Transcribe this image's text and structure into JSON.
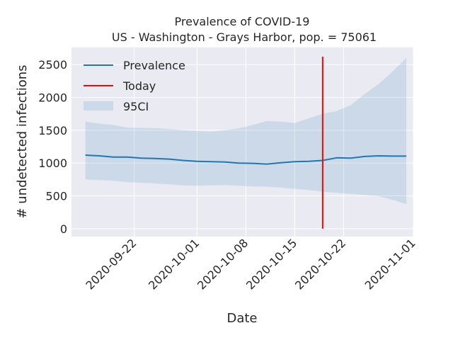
{
  "chart_data": {
    "type": "line",
    "title": "Prevalence of COVID-19",
    "subtitle": "US - Washington - Grays Harbor, pop. = 75061",
    "xlabel": "Date",
    "ylabel": "# undetected infections",
    "xlim": [
      "2020-09-13",
      "2020-11-01"
    ],
    "ylim": [
      -120,
      2760
    ],
    "x_ticks": [
      "2020-09-22",
      "2020-10-01",
      "2020-10-08",
      "2020-10-15",
      "2020-10-22",
      "2020-11-01"
    ],
    "y_ticks": [
      0,
      500,
      1000,
      1500,
      2000,
      2500
    ],
    "legend": {
      "placement": "top-left",
      "entries": [
        "Prevalence",
        "Today",
        "95CI"
      ]
    },
    "grid": true,
    "colors": {
      "prevalence": "#1f77b4",
      "today": "#ff0000",
      "ci": "#1f77b4",
      "background": "#eaeaf2",
      "grid": "#ffffff"
    },
    "today": "2020-10-19",
    "today_range": [
      0,
      2620
    ],
    "series": [
      {
        "name": "Prevalence",
        "x": [
          "2020-09-15",
          "2020-09-17",
          "2020-09-19",
          "2020-09-21",
          "2020-09-23",
          "2020-09-25",
          "2020-09-27",
          "2020-09-29",
          "2020-10-01",
          "2020-10-03",
          "2020-10-05",
          "2020-10-07",
          "2020-10-09",
          "2020-10-11",
          "2020-10-13",
          "2020-10-15",
          "2020-10-17",
          "2020-10-19",
          "2020-10-21",
          "2020-10-23",
          "2020-10-25",
          "2020-10-27",
          "2020-10-29",
          "2020-10-31"
        ],
        "values": [
          1120,
          1110,
          1090,
          1090,
          1075,
          1070,
          1060,
          1040,
          1025,
          1020,
          1015,
          1000,
          995,
          985,
          1005,
          1020,
          1025,
          1040,
          1080,
          1075,
          1100,
          1110,
          1105,
          1105
        ]
      }
    ],
    "ci": {
      "name": "95CI",
      "x": [
        "2020-09-15",
        "2020-09-17",
        "2020-09-19",
        "2020-09-21",
        "2020-09-23",
        "2020-09-25",
        "2020-09-27",
        "2020-09-29",
        "2020-10-01",
        "2020-10-03",
        "2020-10-05",
        "2020-10-07",
        "2020-10-09",
        "2020-10-11",
        "2020-10-13",
        "2020-10-15",
        "2020-10-17",
        "2020-10-19",
        "2020-10-21",
        "2020-10-23",
        "2020-10-25",
        "2020-10-27",
        "2020-10-29",
        "2020-10-31"
      ],
      "lower": [
        750,
        740,
        730,
        710,
        700,
        690,
        675,
        660,
        655,
        660,
        665,
        655,
        645,
        640,
        625,
        605,
        590,
        565,
        545,
        530,
        515,
        495,
        440,
        375
      ],
      "upper": [
        1630,
        1600,
        1580,
        1540,
        1535,
        1530,
        1520,
        1500,
        1490,
        1480,
        1500,
        1530,
        1580,
        1640,
        1630,
        1610,
        1680,
        1750,
        1790,
        1880,
        2050,
        2200,
        2390,
        2600
      ]
    }
  }
}
